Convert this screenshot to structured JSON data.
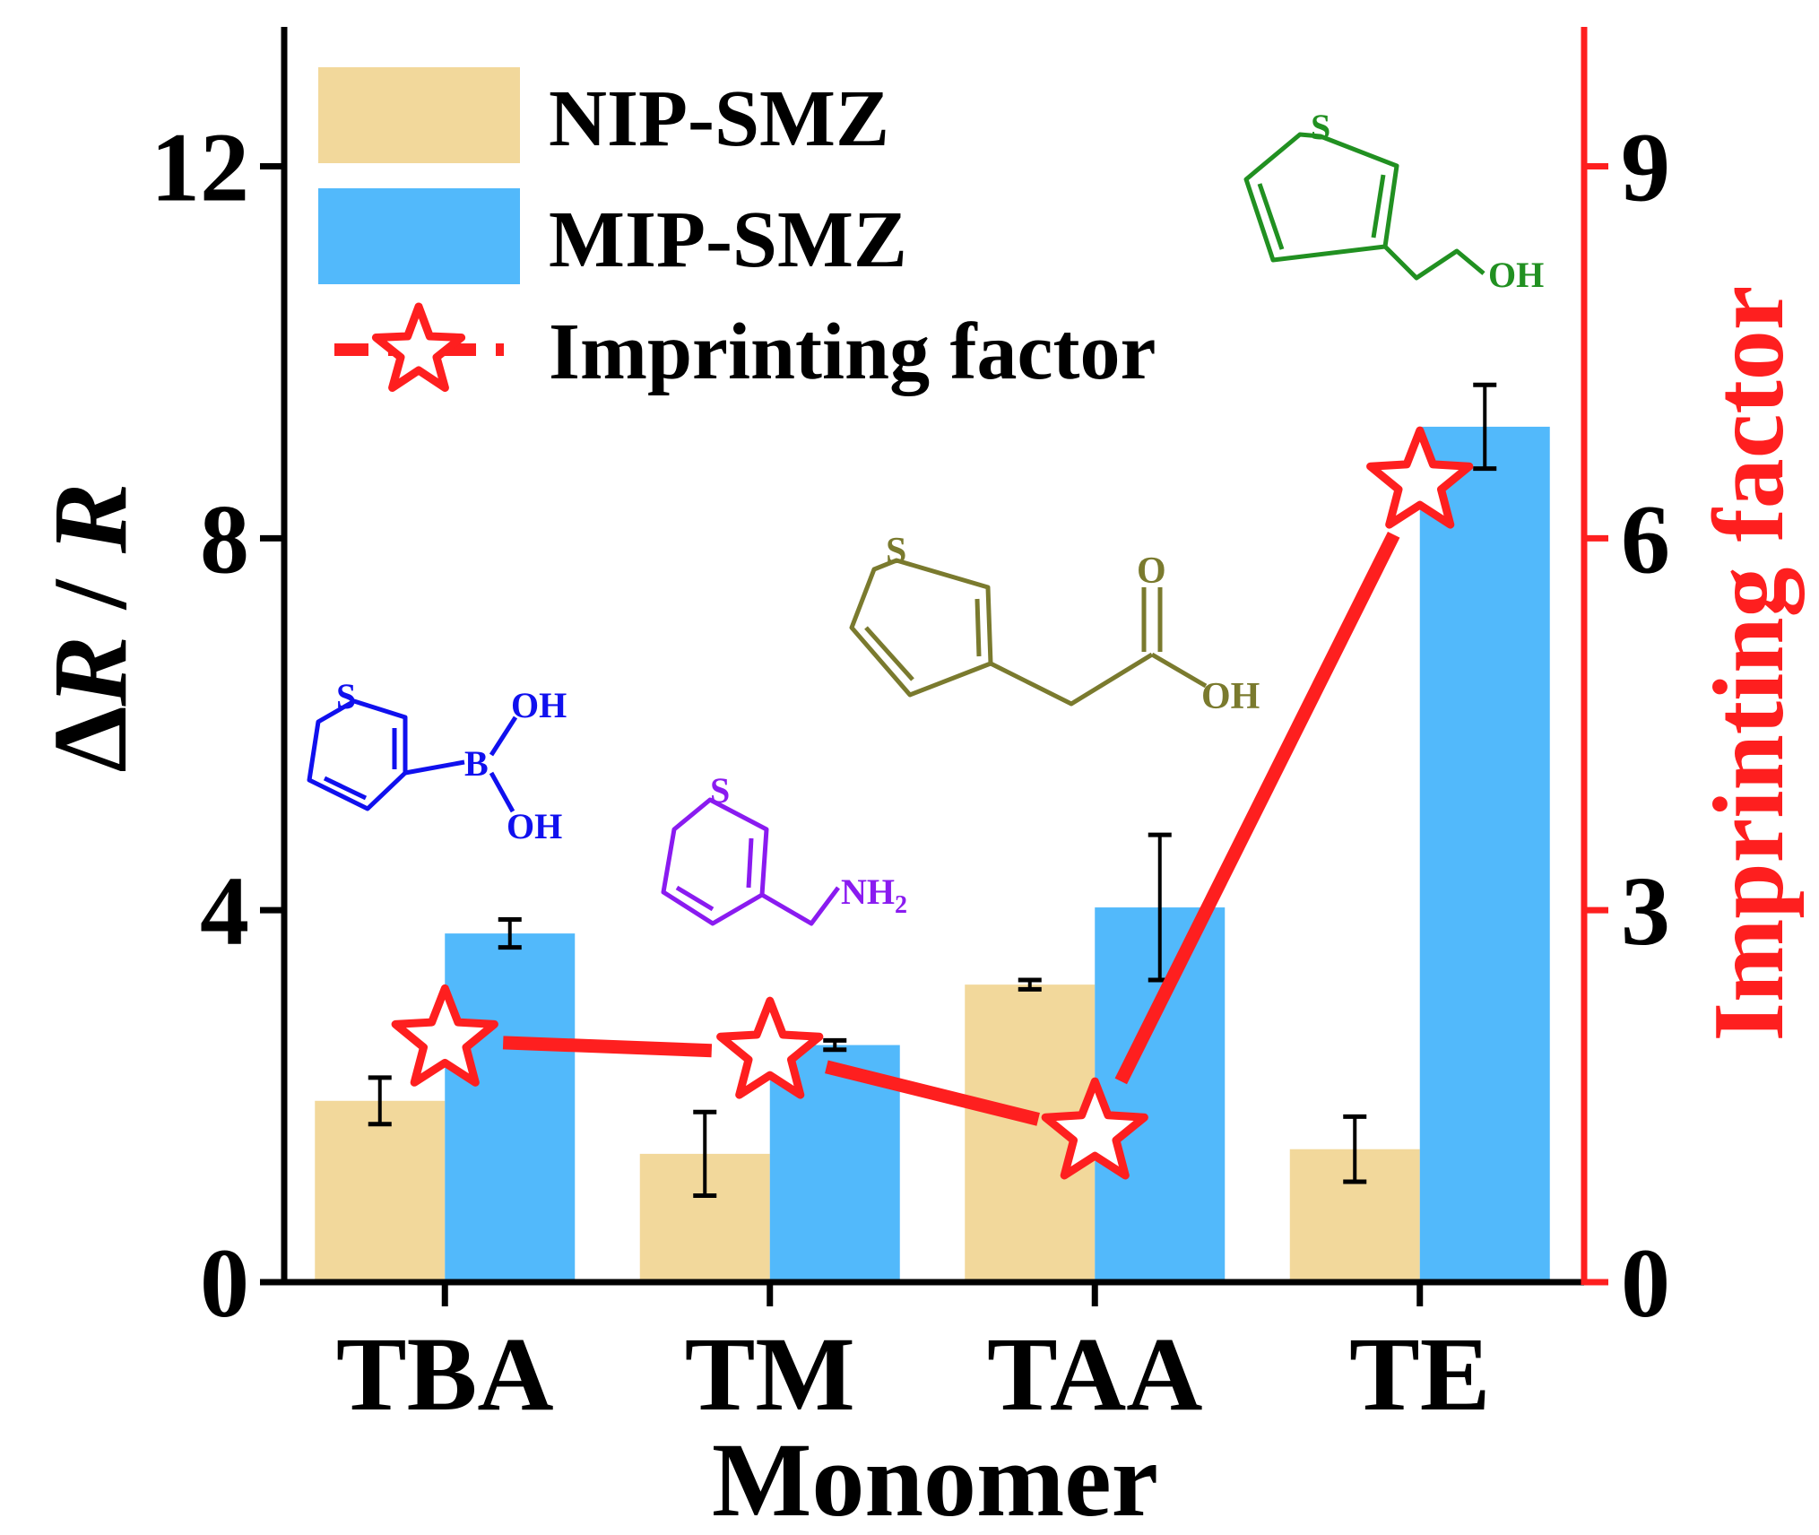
{
  "chart_data": {
    "type": "bar",
    "categories": [
      "TBA",
      "TM",
      "TAA",
      "TE"
    ],
    "xlabel": "Monomer",
    "ylabel_prefix": "Δ",
    "ylabel_R": "R",
    "ylabel_sep": " / ",
    "ylim": [
      0,
      13.5
    ],
    "yticks": [
      0,
      4,
      8,
      12
    ],
    "y2label": "Imprinting factor",
    "y2lim": [
      0,
      10.125
    ],
    "y2ticks": [
      0,
      3,
      6,
      9
    ],
    "series": [
      {
        "name": "NIP-SMZ",
        "axis": "left",
        "color": "#f2d89b",
        "values": [
          1.95,
          1.38,
          3.2,
          1.43
        ],
        "errors": [
          0.25,
          0.45,
          0.05,
          0.35
        ]
      },
      {
        "name": "MIP-SMZ",
        "axis": "left",
        "color": "#52b9fb",
        "values": [
          3.75,
          2.55,
          4.03,
          9.2
        ],
        "errors": [
          0.15,
          0.05,
          0.78,
          0.45
        ]
      }
    ],
    "line_series": {
      "name": "Imprinting factor",
      "axis": "right",
      "color": "#fe1f1f",
      "values": [
        1.95,
        1.85,
        1.2,
        6.45
      ]
    },
    "legend_position": "top-left",
    "structures": [
      {
        "name": "TBA",
        "color": "#1010ee",
        "labels": [
          "S",
          "B",
          "OH",
          "OH"
        ]
      },
      {
        "name": "TM",
        "color": "#8a1bf0",
        "labels": [
          "S",
          "NH",
          "2"
        ]
      },
      {
        "name": "TAA",
        "color": "#7a7a2e",
        "labels": [
          "S",
          "O",
          "OH"
        ]
      },
      {
        "name": "TE",
        "color": "#219021",
        "labels": [
          "S",
          "OH"
        ]
      }
    ],
    "colors": {
      "axis": "#000000",
      "right_axis": "#fe1f1f"
    }
  }
}
